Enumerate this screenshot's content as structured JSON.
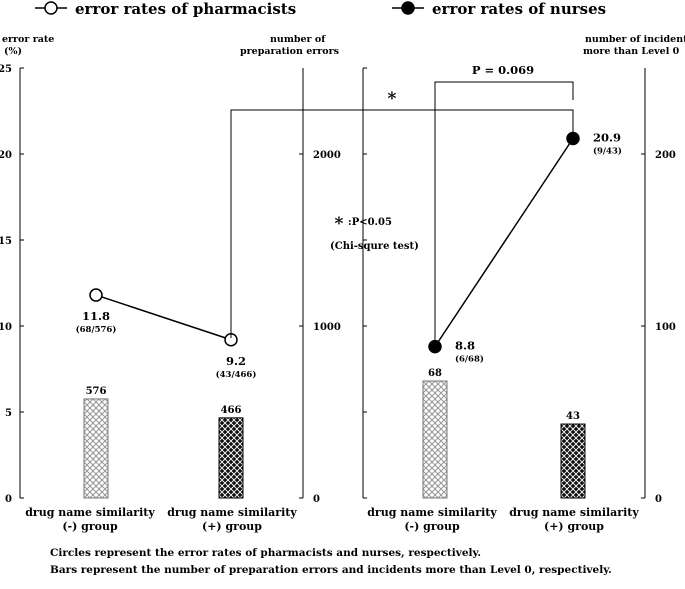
{
  "chart_data": {
    "type": "bar",
    "legend": [
      {
        "label": "error rates of pharmacists",
        "marker": "open-circle"
      },
      {
        "label": "error rates of nurses",
        "marker": "filled-circle"
      }
    ],
    "left_axis": {
      "title_line1": "error rate",
      "title_line2": "(%)",
      "ylim": [
        0,
        25
      ],
      "ticks": [
        "0",
        "5",
        "10",
        "15",
        "20",
        "25"
      ]
    },
    "panels": [
      {
        "id": "pharmacists",
        "right_axis": {
          "title_line1": "number of",
          "title_line2": "preparation errors",
          "ylim": [
            0,
            2500
          ],
          "ticks": [
            "0",
            "1000",
            "2000"
          ]
        },
        "categories": [
          {
            "line1": "drug name similarity",
            "line2": "(-) group"
          },
          {
            "line1": "drug name similarity",
            "line2": "(+) group"
          }
        ],
        "bars": [
          {
            "value": 576,
            "label": "576",
            "pattern": "light"
          },
          {
            "value": 466,
            "label": "466",
            "pattern": "dark"
          }
        ],
        "rates": [
          {
            "value": 11.8,
            "label": "11.8",
            "fraction": "(68/576)"
          },
          {
            "value": 9.2,
            "label": "9.2",
            "fraction": "(43/466)"
          }
        ]
      },
      {
        "id": "nurses",
        "right_axis": {
          "title_line1": "number of incidents",
          "title_line2": "more than Level 0",
          "ylim": [
            0,
            250
          ],
          "ticks": [
            "0",
            "100",
            "200"
          ]
        },
        "categories": [
          {
            "line1": "drug name similarity",
            "line2": "(-) group"
          },
          {
            "line1": "drug name similarity",
            "line2": "(+) group"
          }
        ],
        "bars": [
          {
            "value": 68,
            "label": "68",
            "pattern": "light"
          },
          {
            "value": 43,
            "label": "43",
            "pattern": "dark"
          }
        ],
        "rates": [
          {
            "value": 8.8,
            "label": "8.8",
            "fraction": "(6/68)"
          },
          {
            "value": 20.9,
            "label": "20.9",
            "fraction": "(9/43)"
          }
        ]
      }
    ],
    "annotations": {
      "significance_star": "*",
      "p_value_nurses": "P = 0.069",
      "key_star": "*",
      "key_text": ":P<0.05",
      "test_name": "(Chi-squre  test)"
    }
  },
  "notes": {
    "line1": "Circles represent the error rates of pharmacists and nurses, respectively.",
    "line2": "Bars represent the number of preparation errors and incidents more than Level 0, respectively."
  }
}
